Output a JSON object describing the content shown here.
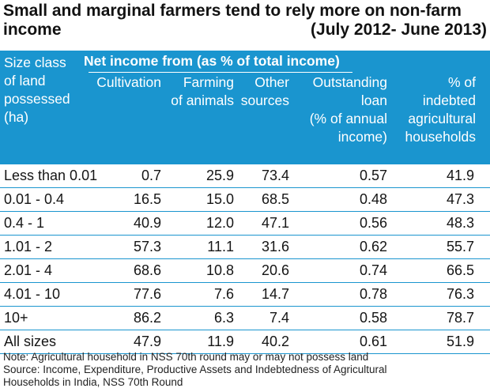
{
  "title": {
    "line1": "Small and marginal farmers tend to rely more on non-farm",
    "line2_left": "income",
    "line2_right": "(July 2012- June 2013)"
  },
  "chart_data": {
    "type": "table",
    "group_header": "Net income from (as % of total income)",
    "columns": [
      {
        "key": "size",
        "label": [
          "Size class",
          "of land",
          "possessed",
          "(ha)"
        ]
      },
      {
        "key": "cultivation",
        "label": [
          "Cultivation"
        ]
      },
      {
        "key": "animals",
        "label": [
          "Farming",
          "of animals"
        ]
      },
      {
        "key": "other",
        "label": [
          "Other",
          "sources"
        ]
      },
      {
        "key": "loan",
        "label": [
          "Outstanding",
          "loan",
          "(% of annual",
          "income)"
        ]
      },
      {
        "key": "indebted",
        "label": [
          "% of",
          "indebted",
          "agricultural",
          "households"
        ]
      }
    ],
    "rows": [
      {
        "size": "Less than 0.01",
        "cultivation": "0.7",
        "animals": "25.9",
        "other": "73.4",
        "loan": "0.57",
        "indebted": "41.9"
      },
      {
        "size": "0.01 - 0.4",
        "cultivation": "16.5",
        "animals": "15.0",
        "other": "68.5",
        "loan": "0.48",
        "indebted": "47.3"
      },
      {
        "size": "0.4 - 1",
        "cultivation": "40.9",
        "animals": "12.0",
        "other": "47.1",
        "loan": "0.56",
        "indebted": "48.3"
      },
      {
        "size": "1.01 - 2",
        "cultivation": "57.3",
        "animals": "11.1",
        "other": "31.6",
        "loan": "0.62",
        "indebted": "55.7"
      },
      {
        "size": "2.01 - 4",
        "cultivation": "68.6",
        "animals": "10.8",
        "other": "20.6",
        "loan": "0.74",
        "indebted": "66.5"
      },
      {
        "size": "4.01 - 10",
        "cultivation": "77.6",
        "animals": "7.6",
        "other": "14.7",
        "loan": "0.78",
        "indebted": "76.3"
      },
      {
        "size": "10+",
        "cultivation": "86.2",
        "animals": "6.3",
        "other": "7.4",
        "loan": "0.58",
        "indebted": "78.7"
      },
      {
        "size": "All sizes",
        "cultivation": "47.9",
        "animals": "11.9",
        "other": "40.2",
        "loan": "0.61",
        "indebted": "51.9"
      }
    ],
    "colors": {
      "header_bg": "#1a95cf",
      "header_text": "#ffffff",
      "rule": "#1a95cf"
    }
  },
  "notes": {
    "note": "Note: Agricultural household in NSS 70th round may or may not possess land",
    "source_1": "Source: Income, Expenditure, Productive Assets and Indebtedness of Agricultural",
    "source_2": "Households in India, NSS 70th Round"
  }
}
